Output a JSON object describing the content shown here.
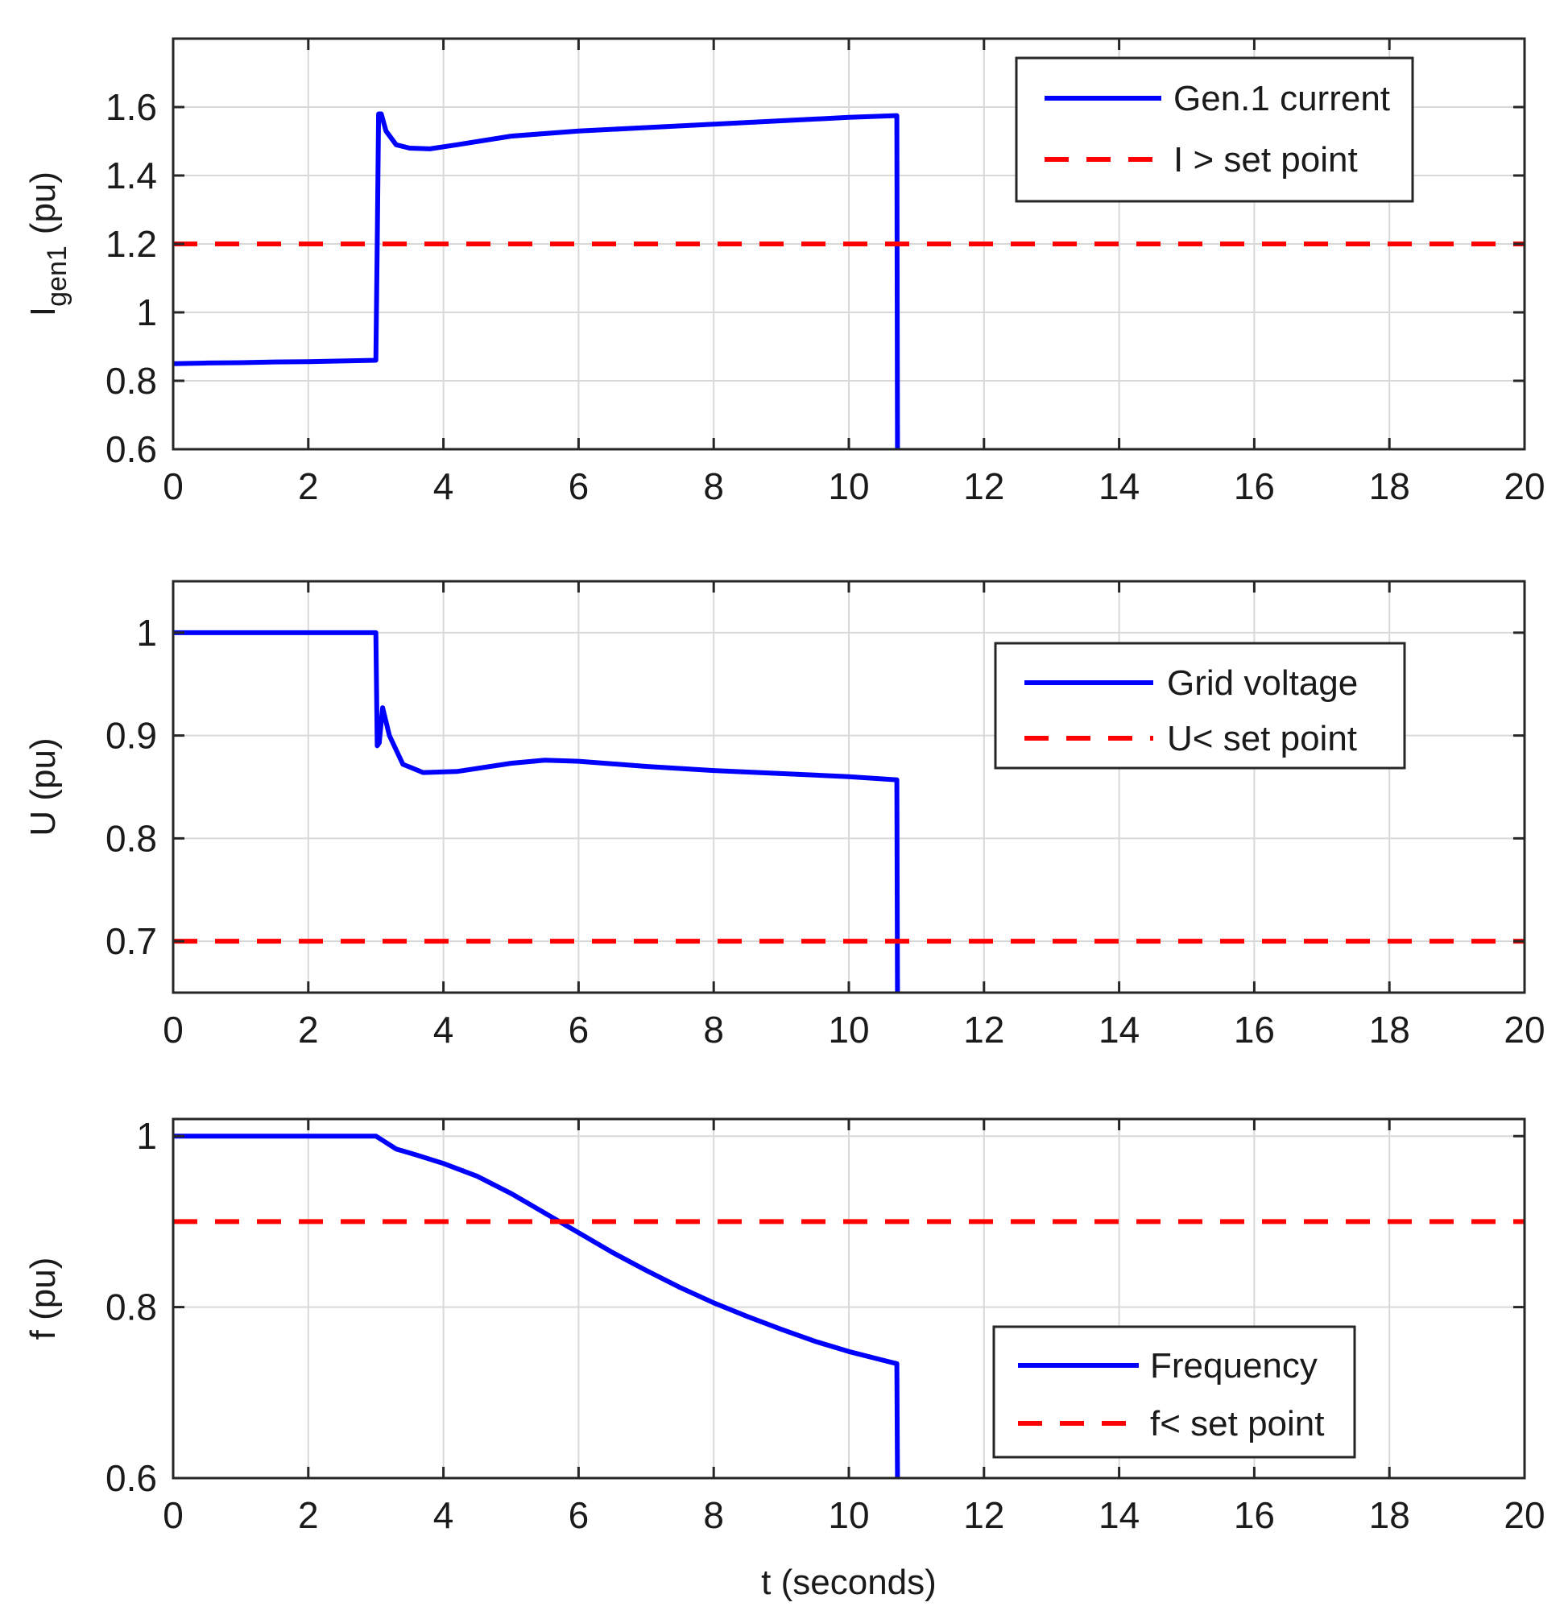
{
  "chart_data": [
    {
      "type": "line",
      "xlim": [
        0,
        20
      ],
      "ylim": [
        0.6,
        1.8
      ],
      "xticks": [
        0,
        2,
        4,
        6,
        8,
        10,
        12,
        14,
        16,
        18,
        20
      ],
      "xtick_labels": [
        "0",
        "2",
        "4",
        "6",
        "8",
        "10",
        "12",
        "14",
        "16",
        "18",
        "20"
      ],
      "yticks": [
        0.6,
        0.8,
        1.0,
        1.2,
        1.4,
        1.6
      ],
      "ytick_labels": [
        "0.6",
        "0.8",
        "1",
        "1.2",
        "1.4",
        "1.6"
      ],
      "ylabel": {
        "main": "I",
        "sub": "gen1",
        "unit": "(pu)"
      },
      "xlabel": "",
      "grid": true,
      "legend_position": "top-right",
      "series": [
        {
          "name": "Gen.1 current",
          "style": "solid",
          "color": "#0000ff",
          "x": [
            0,
            0.5,
            1,
            1.5,
            2,
            2.5,
            3.0,
            3.02,
            3.04,
            3.08,
            3.15,
            3.3,
            3.5,
            3.8,
            4.2,
            5,
            6,
            7,
            8,
            9,
            10,
            10.7,
            10.71,
            10.72
          ],
          "y": [
            0.85,
            0.852,
            0.853,
            0.855,
            0.856,
            0.858,
            0.86,
            1.2,
            1.58,
            1.58,
            1.53,
            1.49,
            1.48,
            1.478,
            1.49,
            1.515,
            1.53,
            1.54,
            1.55,
            1.56,
            1.57,
            1.575,
            1.575,
            0.6
          ]
        },
        {
          "name": "I > set point",
          "style": "dashed",
          "color": "#ff0000",
          "x": [
            0,
            20
          ],
          "y": [
            1.2,
            1.2
          ]
        }
      ]
    },
    {
      "type": "line",
      "xlim": [
        0,
        20
      ],
      "ylim": [
        0.65,
        1.05
      ],
      "xticks": [
        0,
        2,
        4,
        6,
        8,
        10,
        12,
        14,
        16,
        18,
        20
      ],
      "xtick_labels": [
        "0",
        "2",
        "4",
        "6",
        "8",
        "10",
        "12",
        "14",
        "16",
        "18",
        "20"
      ],
      "yticks": [
        0.7,
        0.8,
        0.9,
        1.0
      ],
      "ytick_labels": [
        "0.7",
        "0.8",
        "0.9",
        "1"
      ],
      "ylabel": {
        "main": "U (pu)",
        "sub": "",
        "unit": ""
      },
      "xlabel": "",
      "grid": true,
      "legend_position": "center-right",
      "series": [
        {
          "name": "Grid voltage",
          "style": "solid",
          "color": "#0000ff",
          "x": [
            0,
            1,
            2,
            3.0,
            3.02,
            3.05,
            3.1,
            3.2,
            3.4,
            3.7,
            4.2,
            5,
            5.5,
            6,
            7,
            8,
            9,
            10,
            10.7,
            10.71,
            10.72
          ],
          "y": [
            1.0,
            1.0,
            1.0,
            1.0,
            0.89,
            0.893,
            0.927,
            0.9,
            0.872,
            0.864,
            0.865,
            0.873,
            0.876,
            0.875,
            0.87,
            0.866,
            0.863,
            0.86,
            0.857,
            0.857,
            0.65
          ]
        },
        {
          "name": "U< set point",
          "style": "dashed",
          "color": "#ff0000",
          "x": [
            0,
            20
          ],
          "y": [
            0.7,
            0.7
          ]
        }
      ]
    },
    {
      "type": "line",
      "xlim": [
        0,
        20
      ],
      "ylim": [
        0.6,
        1.02
      ],
      "xticks": [
        0,
        2,
        4,
        6,
        8,
        10,
        12,
        14,
        16,
        18,
        20
      ],
      "xtick_labels": [
        "0",
        "2",
        "4",
        "6",
        "8",
        "10",
        "12",
        "14",
        "16",
        "18",
        "20"
      ],
      "yticks": [
        0.6,
        0.8,
        1.0
      ],
      "ytick_labels": [
        "0.6",
        "0.8",
        "1"
      ],
      "ylabel": {
        "main": "f (pu)",
        "sub": "",
        "unit": ""
      },
      "xlabel": "t (seconds)",
      "grid": true,
      "legend_position": "bottom-right",
      "series": [
        {
          "name": "Frequency",
          "style": "solid",
          "color": "#0000ff",
          "x": [
            0,
            1,
            2,
            3.0,
            3.1,
            3.3,
            3.6,
            4,
            4.5,
            5,
            5.5,
            6,
            6.5,
            7,
            7.5,
            8,
            8.5,
            9,
            9.5,
            10,
            10.5,
            10.7,
            10.71,
            10.72
          ],
          "y": [
            1.0,
            1.0,
            1.0,
            1.0,
            0.995,
            0.985,
            0.978,
            0.968,
            0.953,
            0.933,
            0.91,
            0.887,
            0.864,
            0.843,
            0.823,
            0.805,
            0.789,
            0.774,
            0.76,
            0.748,
            0.738,
            0.734,
            0.734,
            0.6
          ]
        },
        {
          "name": "f< set point",
          "style": "dashed",
          "color": "#ff0000",
          "x": [
            0,
            20
          ],
          "y": [
            0.9,
            0.9
          ]
        }
      ]
    }
  ]
}
